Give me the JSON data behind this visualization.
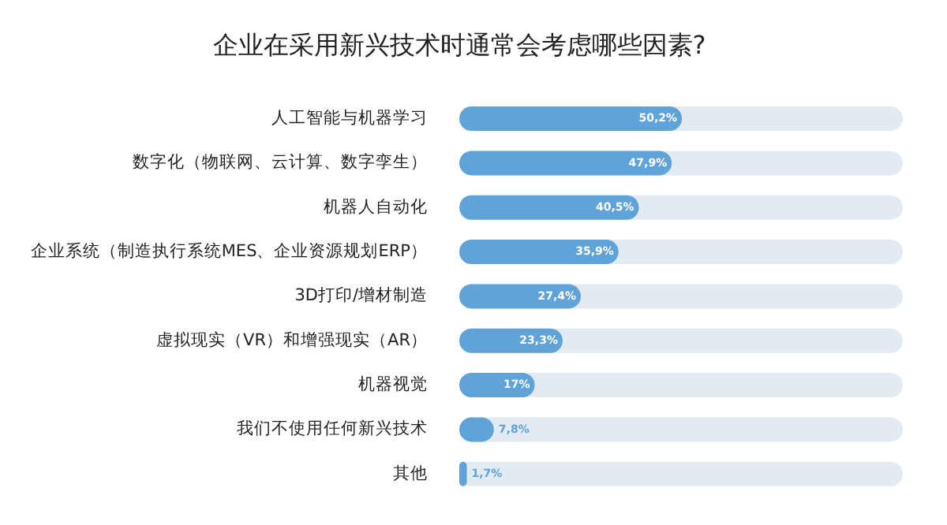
{
  "chart_data": {
    "type": "bar",
    "orientation": "horizontal",
    "title": "企业在采用新兴技术时通常会考虑哪些因素?",
    "categories": [
      "人工智能与机器学习",
      "数字化（物联网、云计算、数字孪生）",
      "机器人自动化",
      "企业系统（制造执行系统MES、企业资源规划ERP）",
      "3D打印/增材制造",
      "虚拟现实（VR）和增强现实（AR）",
      "机器视觉",
      "我们不使用任何新兴技术",
      "其他"
    ],
    "values": [
      50.2,
      47.9,
      40.5,
      35.9,
      27.4,
      23.3,
      17,
      7.8,
      1.7
    ],
    "value_labels": [
      "50,2%",
      "47,9%",
      "40,5%",
      "35,9%",
      "27,4%",
      "23,3%",
      "17%",
      "7,8%",
      "1,7%"
    ],
    "color": "#5fa3d9",
    "xlim": [
      0,
      100
    ],
    "tick_labels": "y",
    "grid": false,
    "legend": false
  }
}
